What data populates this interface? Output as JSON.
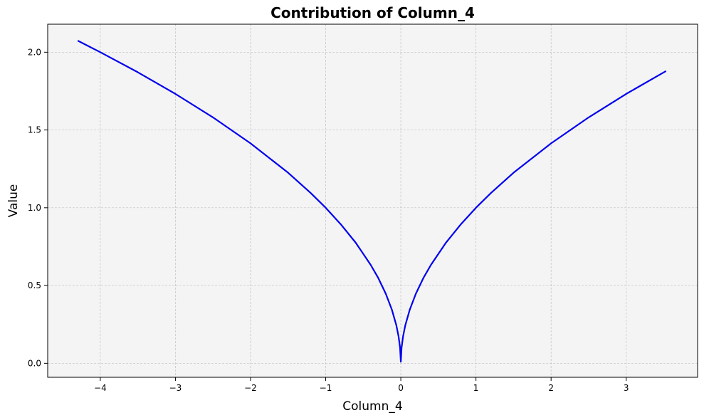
{
  "chart_data": {
    "type": "line",
    "title": "Contribution of Column_4",
    "xlabel": "Column_4",
    "ylabel": "Value",
    "xlim": [
      -4.7,
      3.95
    ],
    "ylim": [
      -0.09,
      2.18
    ],
    "x_ticks": [
      -4,
      -3,
      -2,
      -1,
      0,
      1,
      2,
      3
    ],
    "x_tick_labels": [
      "−4",
      "−3",
      "−2",
      "−1",
      "0",
      "1",
      "2",
      "3"
    ],
    "y_ticks": [
      0.0,
      0.5,
      1.0,
      1.5,
      2.0
    ],
    "y_tick_labels": [
      "0.0",
      "0.5",
      "1.0",
      "1.5",
      "2.0"
    ],
    "grid": true,
    "background_color": "#f4f4f4",
    "series": [
      {
        "color": "#0000ee",
        "x": [
          -4.3,
          -4.0,
          -3.5,
          -3.0,
          -2.5,
          -2.0,
          -1.5,
          -1.2,
          -1.0,
          -0.8,
          -0.6,
          -0.4,
          -0.3,
          -0.2,
          -0.12,
          -0.06,
          -0.03,
          -0.01,
          0.0,
          0.01,
          0.03,
          0.06,
          0.12,
          0.2,
          0.3,
          0.4,
          0.6,
          0.8,
          1.0,
          1.2,
          1.5,
          2.0,
          2.5,
          3.0,
          3.53
        ],
        "y": [
          2.074,
          2.0,
          1.871,
          1.732,
          1.581,
          1.414,
          1.225,
          1.095,
          1.0,
          0.894,
          0.775,
          0.632,
          0.548,
          0.447,
          0.346,
          0.245,
          0.173,
          0.1,
          0.01,
          0.1,
          0.173,
          0.245,
          0.346,
          0.447,
          0.548,
          0.632,
          0.775,
          0.894,
          1.0,
          1.095,
          1.225,
          1.414,
          1.581,
          1.732,
          1.879
        ]
      }
    ]
  }
}
